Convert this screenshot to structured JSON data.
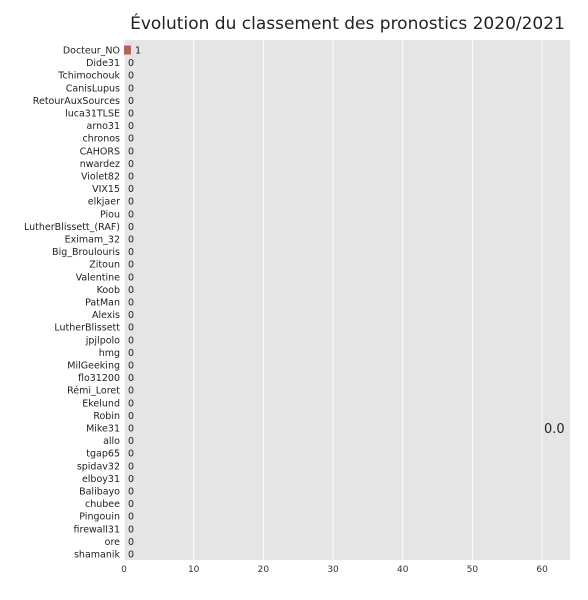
{
  "chart_data": {
    "type": "bar",
    "orientation": "horizontal",
    "title": "Évolution du classement des pronostics 2020/2021",
    "xlabel": "",
    "ylabel": "",
    "xlim": [
      0,
      64
    ],
    "xticks": [
      "0",
      "10",
      "20",
      "30",
      "40",
      "50",
      "60"
    ],
    "grid": true,
    "categories": [
      "Docteur_NO",
      "Dide31",
      "Tchimochouk",
      "CanisLupus",
      "RetourAuxSources",
      "luca31TLSE",
      "arno31",
      "chronos",
      "CAHORS",
      "nwardez",
      "Violet82",
      "VIX15",
      "elkjaer",
      "Piou",
      "LutherBlissett_(RAF)",
      "Eximam_32",
      "Big_Broulouris",
      "Zitoun",
      "Valentine",
      "Koob",
      "PatMan",
      "Alexis",
      "LutherBlissett",
      "jpjlpolo",
      "hmg",
      "MilGeeking",
      "flo31200",
      "Rémi_Loret",
      "Ekelund",
      "Robin",
      "Mike31",
      "allo",
      "tgap65",
      "spidav32",
      "elboy31",
      "Balibayo",
      "chubee",
      "Pingouin",
      "firewall31",
      "ore",
      "shamanik"
    ],
    "values": [
      1,
      0,
      0,
      0,
      0,
      0,
      0,
      0,
      0,
      0,
      0,
      0,
      0,
      0,
      0,
      0,
      0,
      0,
      0,
      0,
      0,
      0,
      0,
      0,
      0,
      0,
      0,
      0,
      0,
      0,
      0,
      0,
      0,
      0,
      0,
      0,
      0,
      0,
      0,
      0,
      0
    ],
    "annotation": "0.0",
    "colors": {
      "bar": "#b5625a",
      "background": "#e5e5e5",
      "grid": "#ffffff"
    }
  }
}
